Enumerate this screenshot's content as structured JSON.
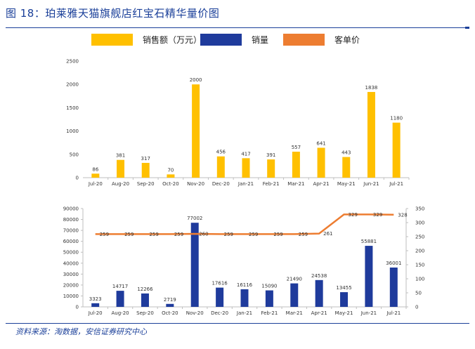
{
  "figure": {
    "title": "图 18：珀莱雅天猫旗舰店红宝石精华量价图",
    "source": "资料来源：淘数据，安信证券研究中心"
  },
  "legend": [
    {
      "label": "销售额（万元）",
      "color": "#ffc000"
    },
    {
      "label": "销量",
      "color": "#1f3b9c"
    },
    {
      "label": "客单价",
      "color": "#ed7d31"
    }
  ],
  "chart_data": [
    {
      "type": "bar",
      "categories": [
        "Jul-20",
        "Aug-20",
        "Sep-20",
        "Oct-20",
        "Nov-20",
        "Dec-20",
        "Jan-21",
        "Feb-21",
        "Mar-21",
        "Apr-21",
        "May-21",
        "Jun-21",
        "Jul-21"
      ],
      "series": [
        {
          "name": "销售额（万元）",
          "color": "#ffc000",
          "values": [
            86,
            381,
            317,
            70,
            2000,
            456,
            417,
            391,
            557,
            641,
            443,
            1838,
            1180
          ]
        }
      ],
      "ylim": [
        0,
        2500
      ],
      "yticks": [
        0,
        500,
        1000,
        1500,
        2000,
        2500
      ],
      "grid": false
    },
    {
      "type": "bar+line",
      "categories": [
        "Jul-20",
        "Aug-20",
        "Sep-20",
        "Oct-20",
        "Nov-20",
        "Dec-20",
        "Jan-21",
        "Feb-21",
        "Mar-21",
        "Apr-21",
        "May-21",
        "Jun-21",
        "Jul-21"
      ],
      "series": [
        {
          "name": "销量",
          "type": "bar",
          "axis": "left",
          "color": "#1f3b9c",
          "values": [
            3323,
            14717,
            12266,
            2719,
            77002,
            17616,
            16116,
            15090,
            21490,
            24538,
            13455,
            55881,
            36001
          ]
        },
        {
          "name": "客单价",
          "type": "line",
          "axis": "right",
          "color": "#ed7d31",
          "values": [
            259,
            259,
            259,
            259,
            260,
            259,
            259,
            259,
            259,
            261,
            329,
            329,
            328
          ],
          "labels": [
            "259",
            "259",
            "259",
            "259",
            "260",
            "259",
            "259",
            "259",
            "259",
            "261",
            "329",
            "329",
            "328"
          ]
        }
      ],
      "ylim_left": [
        0,
        90000
      ],
      "yticks_left": [
        0,
        10000,
        20000,
        30000,
        40000,
        50000,
        60000,
        70000,
        80000,
        90000
      ],
      "ylim_right": [
        0,
        350
      ],
      "yticks_right": [
        0,
        50,
        100,
        150,
        200,
        250,
        300,
        350
      ],
      "grid": false
    }
  ]
}
